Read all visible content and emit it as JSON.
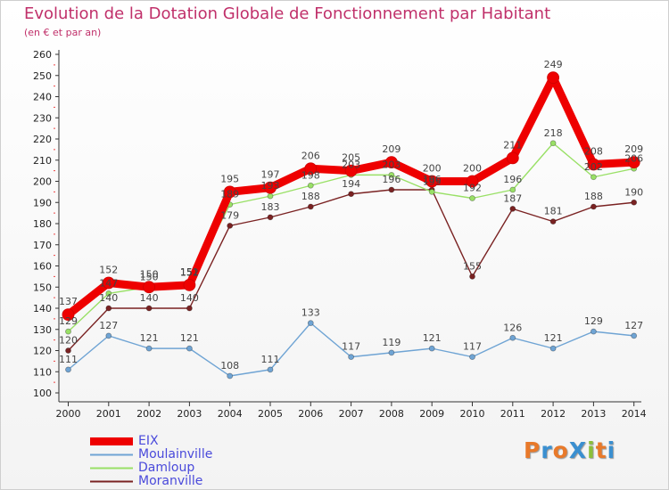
{
  "chart_data": {
    "type": "line",
    "title": "Evolution de la Dotation Globale de Fonctionnement par Habitant",
    "subtitle": "(en € et par an)",
    "xlabel": "",
    "ylabel": "",
    "ylim": [
      100,
      260
    ],
    "yticks": [
      100,
      110,
      120,
      130,
      140,
      150,
      160,
      170,
      180,
      190,
      200,
      210,
      220,
      230,
      240,
      250,
      260
    ],
    "categories": [
      "2000",
      "2001",
      "2002",
      "2003",
      "2004",
      "2005",
      "2006",
      "2007",
      "2008",
      "2009",
      "2010",
      "2011",
      "2012",
      "2013",
      "2014"
    ],
    "series": [
      {
        "name": "Moranville",
        "color": "#7a2222",
        "values": [
          120,
          140,
          140,
          140,
          179,
          183,
          188,
          194,
          196,
          196,
          155,
          187,
          181,
          188,
          190
        ]
      },
      {
        "name": "Damloup",
        "color": "#99e066",
        "values": [
          129,
          147,
          150,
          152,
          189,
          193,
          198,
          203,
          203,
          195,
          192,
          196,
          218,
          202,
          206
        ]
      },
      {
        "name": "Moulainville",
        "color": "#6fa4d4",
        "values": [
          111,
          127,
          121,
          121,
          108,
          111,
          133,
          117,
          119,
          121,
          117,
          126,
          121,
          129,
          127
        ]
      },
      {
        "name": "EIX",
        "color": "#ee0000",
        "values": [
          137,
          152,
          150,
          151,
          195,
          197,
          206,
          205,
          209,
          200,
          200,
          211,
          249,
          208,
          209
        ]
      }
    ],
    "legend": [
      "EIX",
      "Moulainville",
      "Damloup",
      "Moranville"
    ],
    "grid": false
  },
  "logo": {
    "text": "ProXiti",
    "letters": [
      "P",
      "r",
      "o",
      "X",
      "i",
      "t",
      "i"
    ],
    "colors": [
      "#e8792a",
      "#3a8fd0",
      "#e8792a",
      "#3a8fd0",
      "#8bbf3a",
      "#e8792a",
      "#3a8fd0"
    ]
  }
}
